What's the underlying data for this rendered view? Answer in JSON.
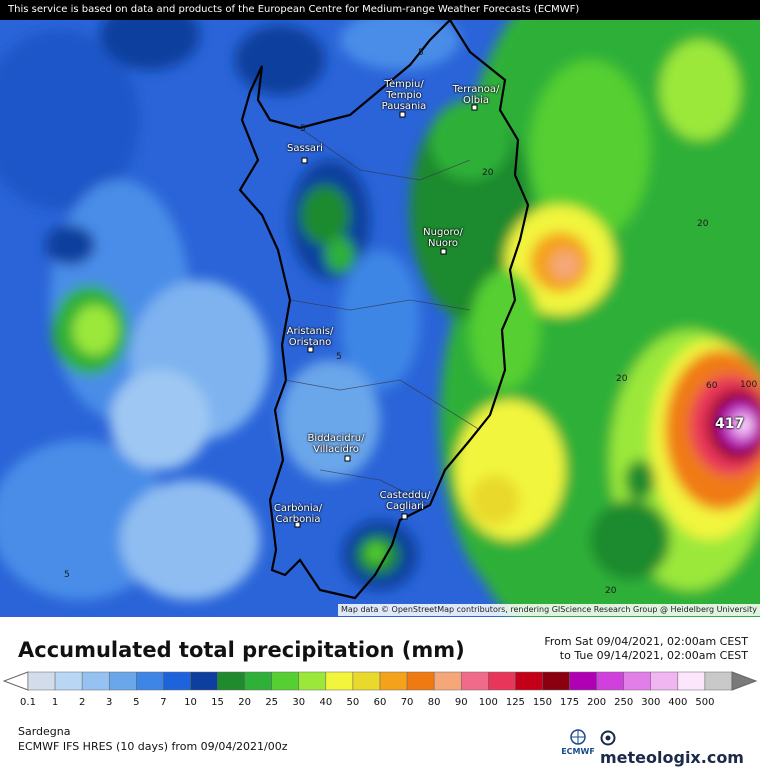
{
  "notice": "This service is based on data and products of the European Centre for Medium-range Weather Forecasts (ECMWF)",
  "attribution": "Map data © OpenStreetMap contributors, rendering GIScience Research Group @ Heidelberg University",
  "cities": [
    {
      "name": "Tèmpiu/\nTempio\nPausania"
    },
    {
      "name": "Terranoa/\nOlbia"
    },
    {
      "name": "Sassari"
    },
    {
      "name": "Nugoro/\nNuoro"
    },
    {
      "name": "Aristanis/\nOristano"
    },
    {
      "name": "Biddacidru/\nVillacidro"
    },
    {
      "name": "Casteddu/\nCagliari"
    },
    {
      "name": "Carbònia/\nCarbonia"
    }
  ],
  "contour_labels": [
    "5",
    "5",
    "5",
    "5",
    "20",
    "20",
    "20",
    "20",
    "60",
    "100"
  ],
  "max_value": "417",
  "title": "Accumulated total precipitation (mm)",
  "period_from": "From Sat 09/04/2021, 02:00am CEST",
  "period_to": "to Tue 09/14/2021, 02:00am CEST",
  "legend": {
    "values": [
      "0.1",
      "1",
      "2",
      "3",
      "5",
      "7",
      "10",
      "15",
      "20",
      "25",
      "30",
      "40",
      "50",
      "60",
      "70",
      "80",
      "90",
      "100",
      "125",
      "150",
      "175",
      "200",
      "250",
      "300",
      "400",
      "500"
    ],
    "colors": [
      "#d2dcea",
      "#b9d6f5",
      "#95c2f0",
      "#6aa6ea",
      "#3d86e6",
      "#1f63dc",
      "#0d3f9e",
      "#1f8a2e",
      "#2eb039",
      "#55cf32",
      "#9be83a",
      "#f2f53c",
      "#e8d92a",
      "#f4a11b",
      "#f07a12",
      "#f5a77a",
      "#f06a8a",
      "#e8365a",
      "#c40018",
      "#8a0010",
      "#b000b4",
      "#d040dc",
      "#e27ee8",
      "#f0b6f2",
      "#fce6fb",
      "#c9c9c9"
    ]
  },
  "region": "Sardegna",
  "model_run": "ECMWF IFS HRES (10 days) from 09/04/2021/00z",
  "ecmwf_label": "ECMWF",
  "meteologix_label": "meteologix.com"
}
